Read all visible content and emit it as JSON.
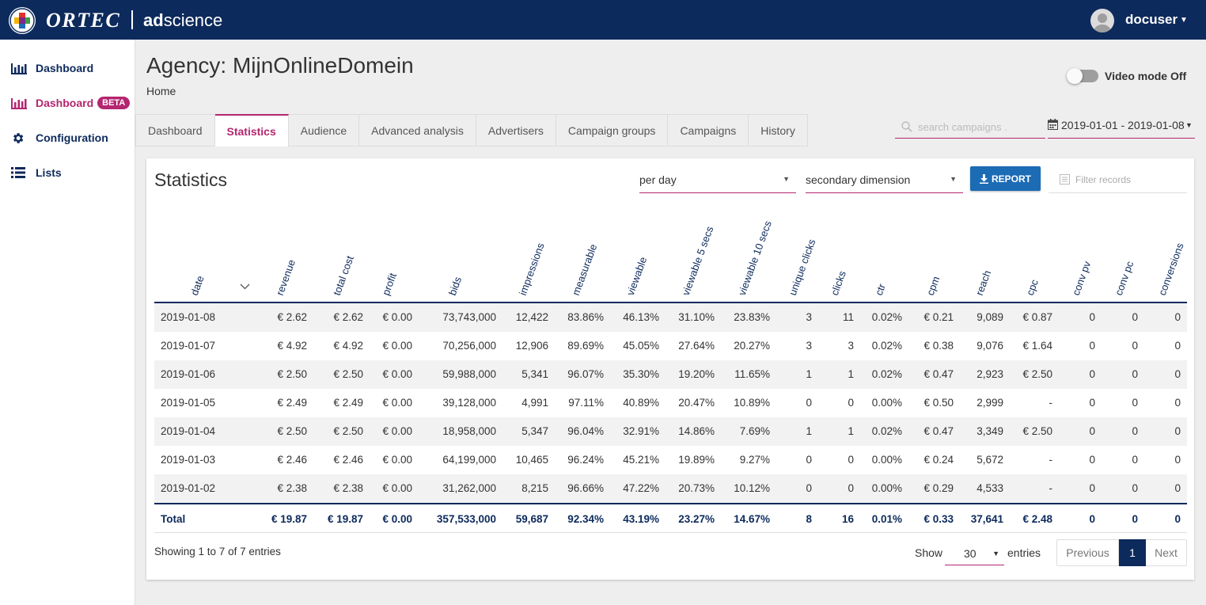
{
  "brand": {
    "name": "ORTEC",
    "product_bold": "ad",
    "product_rest": "science"
  },
  "user": {
    "name": "docuser"
  },
  "sidebar": {
    "items": [
      {
        "label": "Dashboard",
        "icon": "bar-chart-icon"
      },
      {
        "label": "Dashboard",
        "icon": "bar-chart-icon",
        "badge": "BETA"
      },
      {
        "label": "Configuration",
        "icon": "gear-icon"
      },
      {
        "label": "Lists",
        "icon": "list-icon"
      }
    ]
  },
  "header": {
    "title": "Agency: MijnOnlineDomein",
    "breadcrumb": "Home",
    "video_mode_label": "Video mode Off",
    "video_mode_on": false
  },
  "tabs": [
    {
      "label": "Dashboard",
      "active": false
    },
    {
      "label": "Statistics",
      "active": true
    },
    {
      "label": "Audience",
      "active": false
    },
    {
      "label": "Advanced analysis",
      "active": false
    },
    {
      "label": "Advertisers",
      "active": false
    },
    {
      "label": "Campaign groups",
      "active": false
    },
    {
      "label": "Campaigns",
      "active": false
    },
    {
      "label": "History",
      "active": false
    }
  ],
  "search": {
    "placeholder": "search campaigns ."
  },
  "date_range": "2019-01-01 - 2019-01-08",
  "card": {
    "title": "Statistics",
    "period_select": "per day",
    "secondary_select": "secondary dimension",
    "report_label": "REPORT",
    "filter_placeholder": "Filter records"
  },
  "table": {
    "columns": [
      "date",
      "revenue",
      "total cost",
      "profit",
      "bids",
      "impressions",
      "measurable",
      "viewable",
      "viewable 5 secs",
      "viewable 10 secs",
      "unique clicks",
      "clicks",
      "ctr",
      "cpm",
      "reach",
      "cpc",
      "conv pv",
      "conv pc",
      "conversions"
    ],
    "rows": [
      [
        "2019-01-08",
        "€ 2.62",
        "€ 2.62",
        "€ 0.00",
        "73,743,000",
        "12,422",
        "83.86%",
        "46.13%",
        "31.10%",
        "23.83%",
        "3",
        "11",
        "0.02%",
        "€ 0.21",
        "9,089",
        "€ 0.87",
        "0",
        "0",
        "0"
      ],
      [
        "2019-01-07",
        "€ 4.92",
        "€ 4.92",
        "€ 0.00",
        "70,256,000",
        "12,906",
        "89.69%",
        "45.05%",
        "27.64%",
        "20.27%",
        "3",
        "3",
        "0.02%",
        "€ 0.38",
        "9,076",
        "€ 1.64",
        "0",
        "0",
        "0"
      ],
      [
        "2019-01-06",
        "€ 2.50",
        "€ 2.50",
        "€ 0.00",
        "59,988,000",
        "5,341",
        "96.07%",
        "35.30%",
        "19.20%",
        "11.65%",
        "1",
        "1",
        "0.02%",
        "€ 0.47",
        "2,923",
        "€ 2.50",
        "0",
        "0",
        "0"
      ],
      [
        "2019-01-05",
        "€ 2.49",
        "€ 2.49",
        "€ 0.00",
        "39,128,000",
        "4,991",
        "97.11%",
        "40.89%",
        "20.47%",
        "10.89%",
        "0",
        "0",
        "0.00%",
        "€ 0.50",
        "2,999",
        "-",
        "0",
        "0",
        "0"
      ],
      [
        "2019-01-04",
        "€ 2.50",
        "€ 2.50",
        "€ 0.00",
        "18,958,000",
        "5,347",
        "96.04%",
        "32.91%",
        "14.86%",
        "7.69%",
        "1",
        "1",
        "0.02%",
        "€ 0.47",
        "3,349",
        "€ 2.50",
        "0",
        "0",
        "0"
      ],
      [
        "2019-01-03",
        "€ 2.46",
        "€ 2.46",
        "€ 0.00",
        "64,199,000",
        "10,465",
        "96.24%",
        "45.21%",
        "19.89%",
        "9.27%",
        "0",
        "0",
        "0.00%",
        "€ 0.24",
        "5,672",
        "-",
        "0",
        "0",
        "0"
      ],
      [
        "2019-01-02",
        "€ 2.38",
        "€ 2.38",
        "€ 0.00",
        "31,262,000",
        "8,215",
        "96.66%",
        "47.22%",
        "20.73%",
        "10.12%",
        "0",
        "0",
        "0.00%",
        "€ 0.29",
        "4,533",
        "-",
        "0",
        "0",
        "0"
      ]
    ],
    "total": [
      "Total",
      "€ 19.87",
      "€ 19.87",
      "€ 0.00",
      "357,533,000",
      "59,687",
      "92.34%",
      "43.19%",
      "23.27%",
      "14.67%",
      "8",
      "16",
      "0.01%",
      "€ 0.33",
      "37,641",
      "€ 2.48",
      "0",
      "0",
      "0"
    ]
  },
  "footer": {
    "showing": "Showing 1 to 7 of 7 entries",
    "show_label": "Show",
    "page_size": "30",
    "entries_label": "entries",
    "prev_label": "Previous",
    "current_page": "1",
    "next_label": "Next"
  },
  "colors": {
    "navy": "#0d2a5c",
    "accent": "#b4266f",
    "button_blue": "#1c6bb5"
  }
}
